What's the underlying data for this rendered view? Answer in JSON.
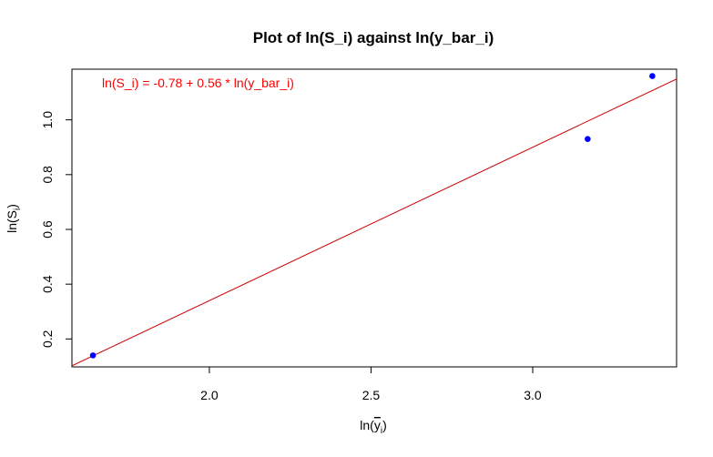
{
  "chart_data": {
    "type": "scatter",
    "title": "Plot of ln(S_i) against ln(y_bar_i)",
    "xlabel": "ln(y̅ᵢ)",
    "xlabel_base": "ln(",
    "xlabel_var": "y",
    "xlabel_sub": "i",
    "xlabel_close": ")",
    "ylabel": "ln(Sᵢ)",
    "ylabel_base": "ln(S",
    "ylabel_sub": "i",
    "ylabel_close": ")",
    "xlim": [
      1.575,
      3.445
    ],
    "ylim": [
      0.098,
      1.185
    ],
    "xticks": [
      2.0,
      2.5,
      3.0
    ],
    "xtick_labels": [
      "2.0",
      "2.5",
      "3.0"
    ],
    "yticks": [
      0.2,
      0.4,
      0.6,
      0.8,
      1.0
    ],
    "ytick_labels": [
      "0.2",
      "0.4",
      "0.6",
      "0.8",
      "1.0"
    ],
    "points": [
      {
        "x": 1.64,
        "y": 0.14
      },
      {
        "x": 3.17,
        "y": 0.93
      },
      {
        "x": 3.37,
        "y": 1.16
      }
    ],
    "fit_line": {
      "intercept": -0.78,
      "slope": 0.56
    },
    "annotation": "ln(S_i) = -0.78 + 0.56 * ln(y_bar_i)",
    "colors": {
      "points": "#0000ff",
      "line": "#cc0000",
      "annotation": "#ff0000",
      "axes": "#000000"
    },
    "grid": false
  }
}
